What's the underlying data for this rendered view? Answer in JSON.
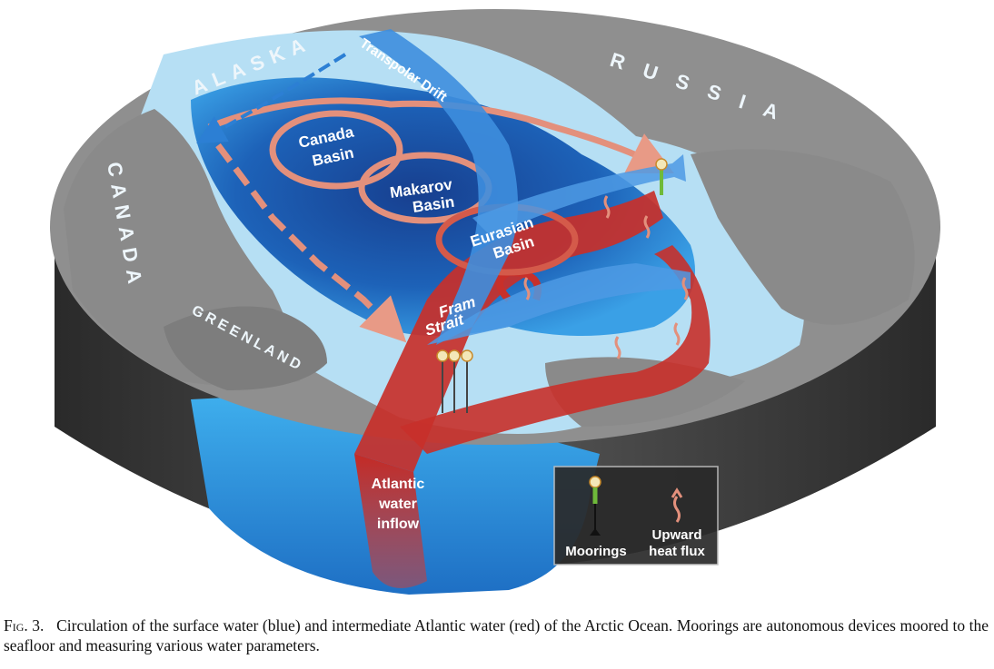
{
  "regions": {
    "alaska": "ALASKA",
    "russia": "RUSSIA",
    "canada": "CANADA",
    "greenland": "GREENLAND"
  },
  "labels": {
    "transpolar_drift": "Transpolar Drift",
    "canada_basin_l1": "Canada",
    "canada_basin_l2": "Basin",
    "makarov_l1": "Makarov",
    "makarov_l2": "Basin",
    "eurasian_l1": "Eurasian",
    "eurasian_l2": "Basin",
    "fram_l1": "Fram",
    "fram_l2": "Strait",
    "inflow_l1": "Atlantic",
    "inflow_l2": "water",
    "inflow_l3": "inflow"
  },
  "legend": {
    "moorings": "Moorings",
    "heat_l1": "Upward",
    "heat_l2": "heat flux"
  },
  "caption": {
    "fig_label": "Fig. 3.",
    "text": "Circulation of the surface water (blue) and intermediate Atlantic water (red) of the Arctic Ocean. Moorings are autonomous devices moored to the seafloor and measuring various water parameters."
  },
  "colors": {
    "land": "#8c8c8c",
    "shelf": "#a9d7f0",
    "ocean": "#2e8fd6",
    "deep": "#1a4f9e",
    "surface_flow": "#3e8ede",
    "atlantic_flow": "#c8302a",
    "cylinder_side": "#444444"
  }
}
